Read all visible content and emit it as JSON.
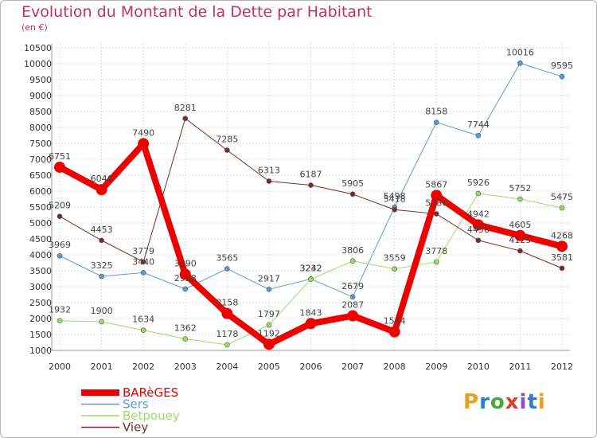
{
  "header": {
    "title": "Evolution du Montant de la Dette par Habitant",
    "subtitle": "(en €)"
  },
  "logo": {
    "text": "Proxiti",
    "colors": [
      "#e8a020",
      "#2a7fc8",
      "#4aa83c",
      "#d8402c",
      "#8a4fc8",
      "#2a7fc8",
      "#e8a020"
    ]
  },
  "colors": {
    "title": "#c2306a",
    "grid": "#dddddd",
    "axis": "#999999"
  },
  "chart_data": {
    "type": "line",
    "title": "Evolution du Montant de la Dette par Habitant",
    "ylabel": "(en €)",
    "x": [
      "2000",
      "2001",
      "2002",
      "2003",
      "2004",
      "2005",
      "2006",
      "2007",
      "2008",
      "2009",
      "2010",
      "2011",
      "2012"
    ],
    "ylim": [
      1000,
      10500
    ],
    "yticks": [
      1000,
      1500,
      2000,
      2500,
      3000,
      3500,
      4000,
      4500,
      5000,
      5500,
      6000,
      6500,
      7000,
      7500,
      8000,
      8500,
      9000,
      9500,
      10000,
      10500
    ],
    "grid": true,
    "legend_position": "bottom-left",
    "series": [
      {
        "name": "BARèGES",
        "color": "#ee0000",
        "width": 8,
        "values": [
          6751,
          6046,
          7490,
          3390,
          2158,
          1192,
          1843,
          2087,
          1584,
          5867,
          4942,
          4605,
          4268
        ]
      },
      {
        "name": "Sers",
        "color": "#5b9bd5",
        "width": 1,
        "values": [
          3969,
          3325,
          3440,
          2928,
          3565,
          2917,
          3242,
          2679,
          5498,
          8158,
          7744,
          10016,
          9595
        ]
      },
      {
        "name": "Betpouey",
        "color": "#99dd66",
        "width": 1,
        "values": [
          1932,
          1900,
          1634,
          1362,
          1178,
          1797,
          3232,
          3806,
          3559,
          3778,
          5926,
          5752,
          5475
        ]
      },
      {
        "name": "Viey",
        "color": "#7a2a2a",
        "width": 1,
        "values": [
          5209,
          4453,
          3779,
          8281,
          7285,
          6313,
          6187,
          5905,
          5418,
          5286,
          4456,
          4125,
          3581
        ]
      }
    ]
  }
}
